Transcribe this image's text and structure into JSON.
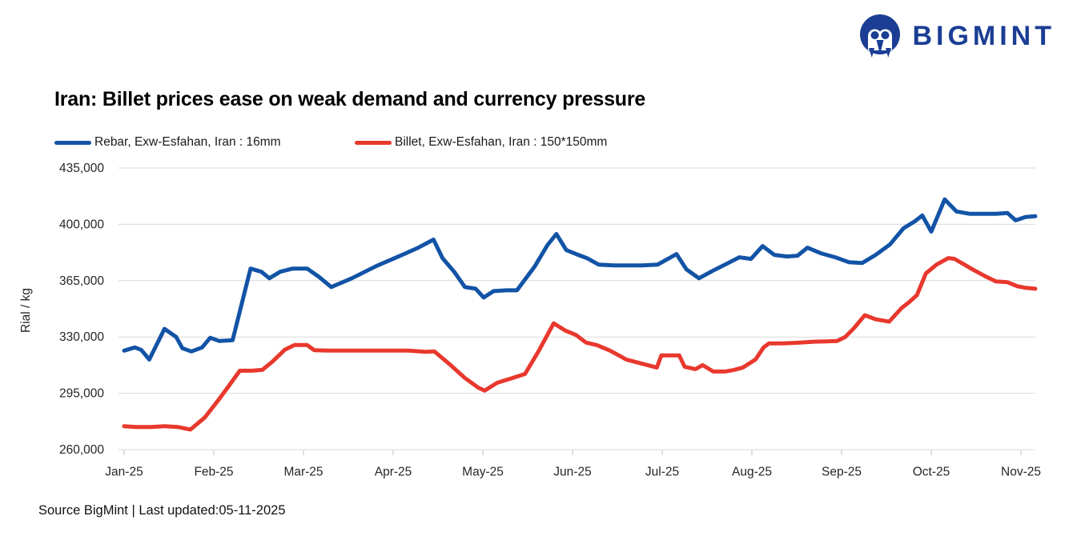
{
  "brand": {
    "name": "BIGMINT",
    "color": "#1b3e94"
  },
  "title": "Iran: Billet prices ease on weak demand and currency pressure",
  "legend": [
    {
      "label": "Rebar, Exw-Esfahan, Iran : 16mm",
      "color": "#1253a6"
    },
    {
      "label": "Billet, Exw-Esfahan, Iran : 150*150mm",
      "color": "#e8382d"
    }
  ],
  "footer": {
    "source": "Source BigMint | Last updated:05-11-2025"
  },
  "chart_data": {
    "type": "line",
    "title": "Iran: Billet prices ease on weak demand and currency pressure",
    "xlabel": "",
    "ylabel": "Rial / kg",
    "ylim": [
      260000,
      435000
    ],
    "y_ticks": [
      260000,
      295000,
      330000,
      365000,
      400000,
      435000
    ],
    "x_labels": [
      "Jan-25",
      "Feb-25",
      "Mar-25",
      "Apr-25",
      "May-25",
      "Jun-25",
      "Jul-25",
      "Aug-25",
      "Sep-25",
      "Oct-25",
      "Nov-25"
    ],
    "x_unit": "months_since_jan_2025",
    "grid": "horizontal",
    "legend_position": "top-left",
    "gridline_color": "#d9d9d9",
    "tick_color": "#bfbfbf",
    "axis_text_color": "#262626",
    "series": [
      {
        "name": "Rebar, Exw-Esfahan, Iran : 16mm",
        "color": "#1253a6",
        "points": [
          [
            0,
            321500
          ],
          [
            0.12,
            323500
          ],
          [
            0.19,
            322000
          ],
          [
            0.28,
            316000
          ],
          [
            0.45,
            335000
          ],
          [
            0.58,
            330000
          ],
          [
            0.65,
            323000
          ],
          [
            0.75,
            321000
          ],
          [
            0.87,
            323500
          ],
          [
            0.96,
            329500
          ],
          [
            1.06,
            327500
          ],
          [
            1.21,
            328000
          ],
          [
            1.41,
            372500
          ],
          [
            1.53,
            370500
          ],
          [
            1.62,
            366500
          ],
          [
            1.74,
            370500
          ],
          [
            1.88,
            372500
          ],
          [
            2.04,
            372500
          ],
          [
            2.17,
            367500
          ],
          [
            2.31,
            361000
          ],
          [
            2.54,
            366500
          ],
          [
            2.81,
            374000
          ],
          [
            3.08,
            380500
          ],
          [
            3.28,
            385500
          ],
          [
            3.45,
            390500
          ],
          [
            3.55,
            379000
          ],
          [
            3.68,
            370500
          ],
          [
            3.8,
            361000
          ],
          [
            3.92,
            360000
          ],
          [
            4.01,
            354500
          ],
          [
            4.12,
            358500
          ],
          [
            4.26,
            359000
          ],
          [
            4.38,
            359000
          ],
          [
            4.58,
            374000
          ],
          [
            4.72,
            387000
          ],
          [
            4.82,
            394000
          ],
          [
            4.93,
            384000
          ],
          [
            5.04,
            381500
          ],
          [
            5.16,
            379000
          ],
          [
            5.29,
            375000
          ],
          [
            5.45,
            374500
          ],
          [
            5.62,
            374500
          ],
          [
            5.78,
            374500
          ],
          [
            5.95,
            375000
          ],
          [
            6.16,
            381500
          ],
          [
            6.27,
            372000
          ],
          [
            6.41,
            366500
          ],
          [
            6.56,
            371000
          ],
          [
            6.72,
            375500
          ],
          [
            6.86,
            379500
          ],
          [
            6.99,
            378500
          ],
          [
            7.12,
            386500
          ],
          [
            7.25,
            381000
          ],
          [
            7.39,
            380000
          ],
          [
            7.51,
            380500
          ],
          [
            7.62,
            385500
          ],
          [
            7.77,
            382000
          ],
          [
            7.93,
            379500
          ],
          [
            8.08,
            376500
          ],
          [
            8.23,
            376000
          ],
          [
            8.38,
            381000
          ],
          [
            8.54,
            387500
          ],
          [
            8.69,
            397500
          ],
          [
            8.82,
            402000
          ],
          [
            8.9,
            405500
          ],
          [
            9.0,
            395500
          ],
          [
            9.15,
            415500
          ],
          [
            9.28,
            408000
          ],
          [
            9.43,
            406500
          ],
          [
            9.58,
            406500
          ],
          [
            9.72,
            406500
          ],
          [
            9.85,
            407000
          ],
          [
            9.94,
            402500
          ],
          [
            10.05,
            404500
          ],
          [
            10.16,
            405000
          ]
        ]
      },
      {
        "name": "Billet, Exw-Esfahan, Iran : 150*150mm",
        "color": "#e8382d",
        "points": [
          [
            0,
            274500
          ],
          [
            0.13,
            274000
          ],
          [
            0.3,
            274000
          ],
          [
            0.45,
            274500
          ],
          [
            0.6,
            274000
          ],
          [
            0.74,
            272500
          ],
          [
            0.9,
            280000
          ],
          [
            1.04,
            290000
          ],
          [
            1.16,
            299000
          ],
          [
            1.29,
            309000
          ],
          [
            1.42,
            309000
          ],
          [
            1.54,
            309500
          ],
          [
            1.66,
            315000
          ],
          [
            1.79,
            322000
          ],
          [
            1.9,
            325000
          ],
          [
            2.04,
            325000
          ],
          [
            2.12,
            321800
          ],
          [
            2.28,
            321500
          ],
          [
            2.54,
            321500
          ],
          [
            2.86,
            321500
          ],
          [
            3.17,
            321500
          ],
          [
            3.36,
            320800
          ],
          [
            3.46,
            321000
          ],
          [
            3.63,
            313000
          ],
          [
            3.8,
            304500
          ],
          [
            3.95,
            298500
          ],
          [
            4.02,
            296700
          ],
          [
            4.16,
            301500
          ],
          [
            4.33,
            304500
          ],
          [
            4.47,
            307000
          ],
          [
            4.62,
            321000
          ],
          [
            4.79,
            338500
          ],
          [
            4.92,
            334000
          ],
          [
            5.04,
            331200
          ],
          [
            5.15,
            326500
          ],
          [
            5.27,
            325000
          ],
          [
            5.42,
            321500
          ],
          [
            5.6,
            316000
          ],
          [
            5.77,
            313500
          ],
          [
            5.94,
            311000
          ],
          [
            5.99,
            318500
          ],
          [
            6.19,
            318500
          ],
          [
            6.25,
            311500
          ],
          [
            6.37,
            310000
          ],
          [
            6.45,
            312500
          ],
          [
            6.57,
            308500
          ],
          [
            6.7,
            308500
          ],
          [
            6.8,
            309500
          ],
          [
            6.9,
            311000
          ],
          [
            7.04,
            316000
          ],
          [
            7.13,
            323500
          ],
          [
            7.19,
            326000
          ],
          [
            7.35,
            326000
          ],
          [
            7.53,
            326500
          ],
          [
            7.68,
            327000
          ],
          [
            7.83,
            327200
          ],
          [
            7.95,
            327500
          ],
          [
            8.04,
            330000
          ],
          [
            8.13,
            335000
          ],
          [
            8.26,
            343500
          ],
          [
            8.38,
            341000
          ],
          [
            8.53,
            339500
          ],
          [
            8.67,
            348000
          ],
          [
            8.75,
            351500
          ],
          [
            8.84,
            356000
          ],
          [
            8.94,
            369500
          ],
          [
            9.06,
            375000
          ],
          [
            9.19,
            379000
          ],
          [
            9.26,
            378500
          ],
          [
            9.46,
            372000
          ],
          [
            9.61,
            367500
          ],
          [
            9.72,
            364500
          ],
          [
            9.85,
            364000
          ],
          [
            9.96,
            361500
          ],
          [
            10.06,
            360500
          ],
          [
            10.16,
            360000
          ]
        ]
      }
    ]
  }
}
